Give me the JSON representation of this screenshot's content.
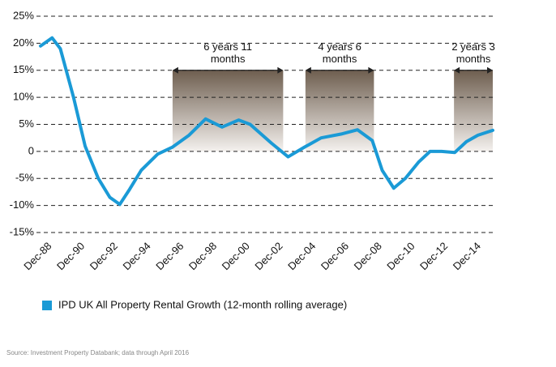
{
  "chart_data": {
    "type": "line",
    "x": [
      1988.9,
      1989.6,
      1990.1,
      1990.9,
      1991.6,
      1992.4,
      1993.1,
      1993.7,
      1994.3,
      1995.0,
      1996.0,
      1996.9,
      1997.9,
      1998.9,
      1999.9,
      2000.9,
      2001.6,
      2002.9,
      2003.9,
      2004.9,
      2005.9,
      2007.1,
      2008.1,
      2009.0,
      2009.6,
      2010.3,
      2011.0,
      2011.8,
      2012.5,
      2013.2,
      2014.0,
      2014.7,
      2015.4,
      2016.3
    ],
    "series": [
      {
        "name": "IPD UK All Property Rental Growth (12-month rolling average)",
        "color": "#1a9ad6",
        "values": [
          19.5,
          21,
          19,
          10,
          1,
          -5,
          -8.5,
          -9.8,
          -7,
          -3.5,
          -0.5,
          0.8,
          3,
          6,
          4.5,
          5.8,
          5,
          1.5,
          -1,
          0.8,
          2.5,
          3.2,
          4,
          2,
          -3.5,
          -6.8,
          -5,
          -2,
          0,
          0,
          -0.2,
          1.8,
          3,
          3.9
        ]
      }
    ],
    "xlim": [
      1988.9,
      2016.3
    ],
    "xticks": [
      {
        "value": 1988.9,
        "label": "Dec-88"
      },
      {
        "value": 1990.9,
        "label": "Dec-90"
      },
      {
        "value": 1992.9,
        "label": "Dec-92"
      },
      {
        "value": 1994.9,
        "label": "Dec-94"
      },
      {
        "value": 1996.9,
        "label": "Dec-96"
      },
      {
        "value": 1998.9,
        "label": "Dec-98"
      },
      {
        "value": 2000.9,
        "label": "Dec-00"
      },
      {
        "value": 2002.9,
        "label": "Dec-02"
      },
      {
        "value": 2004.9,
        "label": "Dec-04"
      },
      {
        "value": 2006.9,
        "label": "Dec-06"
      },
      {
        "value": 2008.9,
        "label": "Dec-08"
      },
      {
        "value": 2010.9,
        "label": "Dec-10"
      },
      {
        "value": 2012.9,
        "label": "Dec-12"
      },
      {
        "value": 2014.9,
        "label": "Dec-14"
      }
    ],
    "ylim": [
      -15,
      25
    ],
    "yticks": [
      {
        "value": -15,
        "label": "-15%"
      },
      {
        "value": -10,
        "label": "-10%"
      },
      {
        "value": -5,
        "label": "-5%"
      },
      0,
      {
        "value": 5,
        "label": "5%"
      },
      {
        "value": 10,
        "label": "10%"
      },
      {
        "value": 15,
        "label": "15%"
      },
      {
        "value": 20,
        "label": "20%"
      },
      {
        "value": 25,
        "label": "25%"
      }
    ],
    "grid": true,
    "periods": [
      {
        "label_lines": [
          "6 years 11",
          "months"
        ],
        "start": 1996.9,
        "end": 2003.6,
        "top": 15
      },
      {
        "label_lines": [
          "4 years 6",
          "months"
        ],
        "start": 2004.95,
        "end": 2009.1,
        "top": 15
      },
      {
        "label_lines": [
          "2 years 3",
          "months"
        ],
        "start": 2013.95,
        "end": 2016.3,
        "top": 15
      }
    ],
    "legend": "bottom-left",
    "source": "Source: Investment Property Databank; data through April 2016"
  }
}
